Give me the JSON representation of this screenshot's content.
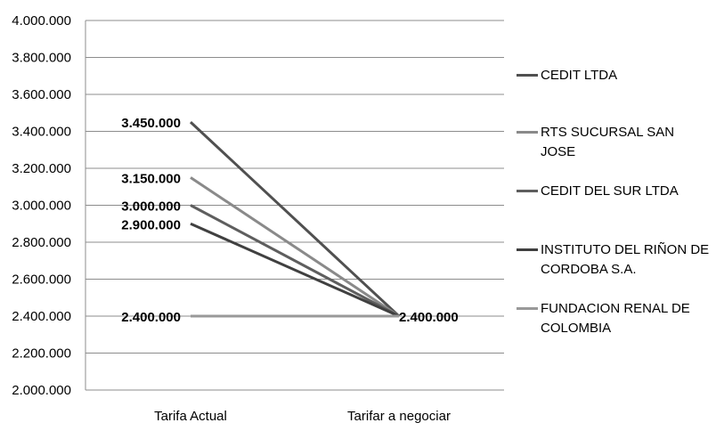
{
  "chart_data": {
    "type": "line",
    "categories": [
      "Tarifa Actual",
      "Tarifar a negociar"
    ],
    "ylim": [
      2000000,
      4000000
    ],
    "y_ticks": [
      "2.000.000",
      "2.200.000",
      "2.400.000",
      "2.600.000",
      "2.800.000",
      "3.000.000",
      "3.200.000",
      "3.400.000",
      "3.600.000",
      "3.800.000",
      "4.000.000"
    ],
    "grid": true,
    "legend_position": "right",
    "series": [
      {
        "name": "CEDIT LTDA",
        "values": [
          3450000,
          2400000
        ],
        "labels": [
          "3.450.000",
          ""
        ],
        "color": "#505050"
      },
      {
        "name": "RTS SUCURSAL SAN JOSE",
        "values": [
          3150000,
          2400000
        ],
        "labels": [
          "3.150.000",
          ""
        ],
        "color": "#8a8a8a"
      },
      {
        "name": "CEDIT DEL SUR LTDA",
        "values": [
          3000000,
          2400000
        ],
        "labels": [
          "3.000.000",
          ""
        ],
        "color": "#5e5e5e"
      },
      {
        "name": "INSTITUTO DEL RIÑON DE CORDOBA S.A.",
        "values": [
          2900000,
          2400000
        ],
        "labels": [
          "2.900.000",
          ""
        ],
        "color": "#404040"
      },
      {
        "name": "FUNDACION RENAL DE COLOMBIA",
        "values": [
          2400000,
          2400000
        ],
        "labels": [
          "2.400.000",
          "2.400.000"
        ],
        "color": "#999999"
      }
    ]
  }
}
